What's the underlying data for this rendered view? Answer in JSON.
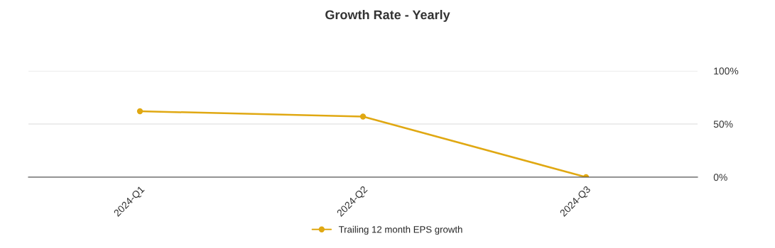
{
  "chart_data": {
    "type": "line",
    "title": "Growth Rate - Yearly",
    "categories": [
      "2024-Q1",
      "2024-Q2",
      "2024-Q3"
    ],
    "series": [
      {
        "name": "Trailing 12 month EPS growth",
        "color": "#e0a812",
        "values": [
          62,
          57,
          0
        ]
      }
    ],
    "ylim": [
      0,
      100
    ],
    "yticks": [
      {
        "value": 0,
        "label": "0%"
      },
      {
        "value": 50,
        "label": "50%"
      },
      {
        "value": 100,
        "label": "100%"
      }
    ],
    "grid": "y",
    "legend": "bottom",
    "marker": "circle",
    "line_style": "solid"
  }
}
